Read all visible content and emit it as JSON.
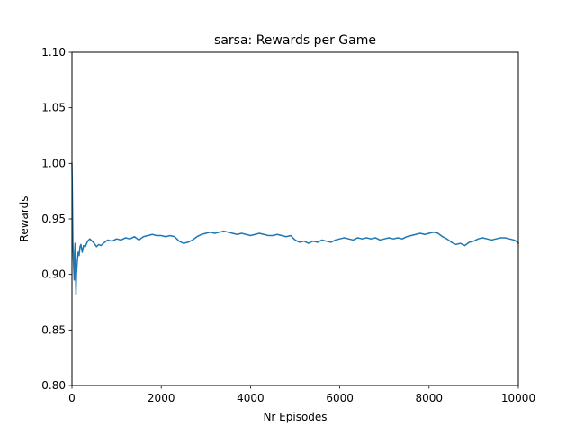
{
  "chart_data": {
    "type": "line",
    "title": "sarsa: Rewards per Game",
    "xlabel": "Nr Episodes",
    "ylabel": "Rewards",
    "xlim": [
      0,
      10000
    ],
    "ylim": [
      0.8,
      1.1
    ],
    "xticks": [
      0,
      2000,
      4000,
      6000,
      8000,
      10000
    ],
    "xtick_labels": [
      "0",
      "2000",
      "4000",
      "6000",
      "8000",
      "10000"
    ],
    "yticks": [
      0.8,
      0.85,
      0.9,
      0.95,
      1.0,
      1.05,
      1.1
    ],
    "ytick_labels": [
      "0.80",
      "0.85",
      "0.90",
      "0.95",
      "1.00",
      "1.05",
      "1.10"
    ],
    "grid": false,
    "legend": "none",
    "series": [
      {
        "color": "#1f77b4",
        "x": [
          0,
          10,
          20,
          30,
          40,
          50,
          60,
          70,
          80,
          90,
          100,
          120,
          140,
          160,
          180,
          200,
          230,
          260,
          300,
          350,
          400,
          450,
          500,
          550,
          600,
          650,
          700,
          800,
          900,
          1000,
          1100,
          1200,
          1300,
          1400,
          1500,
          1600,
          1700,
          1800,
          1900,
          2000,
          2100,
          2200,
          2300,
          2400,
          2500,
          2600,
          2700,
          2800,
          2900,
          3000,
          3100,
          3200,
          3300,
          3400,
          3500,
          3600,
          3700,
          3800,
          3900,
          4000,
          4100,
          4200,
          4300,
          4400,
          4500,
          4600,
          4700,
          4800,
          4900,
          5000,
          5100,
          5200,
          5300,
          5400,
          5500,
          5600,
          5700,
          5800,
          5900,
          6000,
          6100,
          6200,
          6300,
          6400,
          6500,
          6600,
          6700,
          6800,
          6900,
          7000,
          7100,
          7200,
          7300,
          7400,
          7500,
          7600,
          7700,
          7800,
          7900,
          8000,
          8100,
          8200,
          8300,
          8400,
          8500,
          8600,
          8700,
          8800,
          8900,
          9000,
          9100,
          9200,
          9300,
          9400,
          9500,
          9600,
          9700,
          9800,
          9900,
          9950,
          10000
        ],
        "y": [
          1.0,
          0.97,
          0.93,
          0.915,
          0.905,
          0.895,
          0.92,
          0.928,
          0.9,
          0.882,
          0.9,
          0.912,
          0.92,
          0.917,
          0.925,
          0.927,
          0.92,
          0.926,
          0.925,
          0.93,
          0.932,
          0.93,
          0.928,
          0.925,
          0.927,
          0.926,
          0.928,
          0.931,
          0.93,
          0.932,
          0.931,
          0.933,
          0.932,
          0.934,
          0.931,
          0.934,
          0.935,
          0.936,
          0.935,
          0.935,
          0.934,
          0.935,
          0.934,
          0.93,
          0.928,
          0.929,
          0.931,
          0.934,
          0.936,
          0.937,
          0.938,
          0.937,
          0.938,
          0.939,
          0.938,
          0.937,
          0.936,
          0.937,
          0.936,
          0.935,
          0.936,
          0.937,
          0.936,
          0.935,
          0.935,
          0.936,
          0.935,
          0.934,
          0.935,
          0.931,
          0.929,
          0.93,
          0.928,
          0.93,
          0.929,
          0.931,
          0.93,
          0.929,
          0.931,
          0.932,
          0.933,
          0.932,
          0.931,
          0.933,
          0.932,
          0.933,
          0.932,
          0.933,
          0.931,
          0.932,
          0.933,
          0.932,
          0.933,
          0.932,
          0.934,
          0.935,
          0.936,
          0.937,
          0.936,
          0.937,
          0.938,
          0.937,
          0.934,
          0.932,
          0.929,
          0.927,
          0.928,
          0.926,
          0.929,
          0.93,
          0.932,
          0.933,
          0.932,
          0.931,
          0.932,
          0.933,
          0.933,
          0.932,
          0.931,
          0.93,
          0.928
        ]
      }
    ]
  }
}
